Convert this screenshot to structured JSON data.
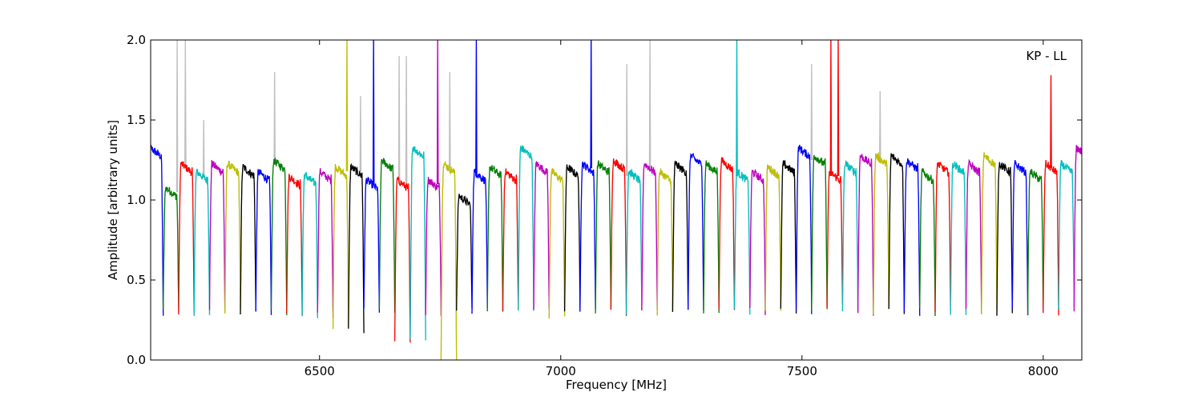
{
  "chart_data": {
    "type": "line",
    "annotation": "KP - LL",
    "xlabel": "Frequency [MHz]",
    "ylabel": "Amplitude [arbitrary units]",
    "xlim": [
      6150,
      8080
    ],
    "ylim": [
      0.0,
      2.0
    ],
    "xticks": [
      6500,
      7000,
      7500,
      8000
    ],
    "xtick_labels": [
      "6500",
      "7000",
      "7500",
      "8000"
    ],
    "yticks": [
      0.0,
      0.5,
      1.0,
      1.5,
      2.0
    ],
    "ytick_labels": [
      "0.0",
      "0.5",
      "1.0",
      "1.5",
      "2.0"
    ],
    "grid": false,
    "legend": "none",
    "palette": [
      "#0000ff",
      "#008000",
      "#ff0000",
      "#00bfbf",
      "#bf00bf",
      "#bfbf00",
      "#000000"
    ],
    "raw_color": "#c0c0c0",
    "channel_width_mhz": 32,
    "channel_start_mhz": 6144,
    "channel_levels": [
      1.3,
      1.05,
      1.2,
      1.15,
      1.2,
      1.2,
      1.18,
      1.15,
      1.22,
      1.12,
      1.13,
      1.15,
      1.18,
      1.18,
      1.1,
      1.22,
      1.1,
      1.3,
      1.1,
      1.2,
      1.0,
      1.15,
      1.18,
      1.15,
      1.3,
      1.2,
      1.15,
      1.18,
      1.2,
      1.2,
      1.22,
      1.15,
      1.2,
      1.15,
      1.2,
      1.25,
      1.2,
      1.22,
      1.15,
      1.15,
      1.18,
      1.2,
      1.3,
      1.25,
      1.15,
      1.2,
      1.25,
      1.25,
      1.25,
      1.22,
      1.15,
      1.2,
      1.2,
      1.2,
      1.25,
      1.2,
      1.2,
      1.15,
      1.2,
      1.2,
      1.3
    ],
    "channel_edge_minima": [
      0.28,
      0.3,
      0.3,
      0.3,
      0.3,
      0.3,
      0.3,
      0.3,
      0.3,
      0.3,
      0.28,
      0.28,
      0.2,
      0.18,
      0.3,
      0.3,
      0.1,
      0.12,
      0.3,
      0.02,
      0.3,
      0.3,
      0.3,
      0.3,
      0.3,
      0.3,
      0.25,
      0.3,
      0.3,
      0.3,
      0.3,
      0.3,
      0.3,
      0.3,
      0.3,
      0.3,
      0.3,
      0.3,
      0.3,
      0.3,
      0.3,
      0.3,
      0.3,
      0.3,
      0.35,
      0.3,
      0.3,
      0.3,
      0.3,
      0.3,
      0.3,
      0.3,
      0.3,
      0.3,
      0.3,
      0.3,
      0.3,
      0.3,
      0.3,
      0.32,
      0.3
    ],
    "narrow_spikes": [
      {
        "x": 6205,
        "y": 2.0,
        "series": "raw"
      },
      {
        "x": 6222,
        "y": 2.0,
        "series": "raw"
      },
      {
        "x": 6260,
        "y": 1.5,
        "series": "raw"
      },
      {
        "x": 6407,
        "y": 1.8,
        "series": "raw"
      },
      {
        "x": 6557,
        "y": 2.0,
        "series": "channel"
      },
      {
        "x": 6585,
        "y": 1.65,
        "series": "raw"
      },
      {
        "x": 6612,
        "y": 2.0,
        "series": "channel"
      },
      {
        "x": 6665,
        "y": 1.9,
        "series": "raw"
      },
      {
        "x": 6680,
        "y": 1.9,
        "series": "raw"
      },
      {
        "x": 6745,
        "y": 2.0,
        "series": "channel"
      },
      {
        "x": 6770,
        "y": 1.8,
        "series": "raw"
      },
      {
        "x": 6825,
        "y": 2.0,
        "series": "channel"
      },
      {
        "x": 7063,
        "y": 2.0,
        "series": "channel"
      },
      {
        "x": 7137,
        "y": 1.85,
        "series": "raw"
      },
      {
        "x": 7185,
        "y": 2.0,
        "series": "raw"
      },
      {
        "x": 7365,
        "y": 2.0,
        "series": "channel"
      },
      {
        "x": 7520,
        "y": 1.85,
        "series": "raw"
      },
      {
        "x": 7560,
        "y": 2.0,
        "series": "channel"
      },
      {
        "x": 7575,
        "y": 2.0,
        "series": "channel"
      },
      {
        "x": 7662,
        "y": 1.68,
        "series": "raw"
      },
      {
        "x": 8016,
        "y": 1.78,
        "series": "channel"
      }
    ]
  }
}
